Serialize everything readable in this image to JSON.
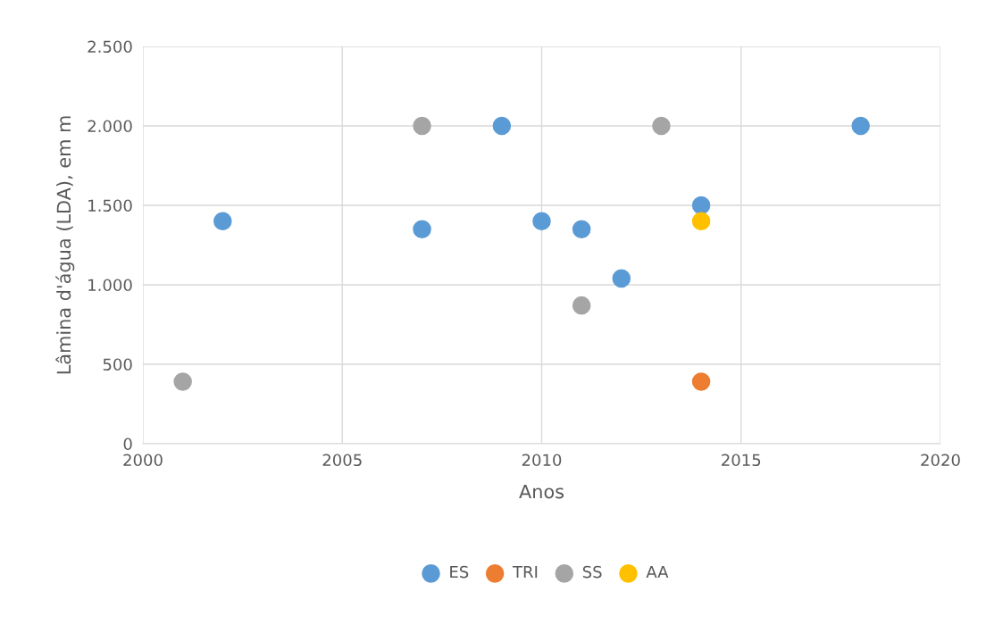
{
  "chart_data": {
    "type": "scatter",
    "xlabel": "Anos",
    "ylabel": "Lâmina d'água (LDA), em m",
    "series": [
      {
        "name": "ES",
        "color": "#5b9bd5",
        "x": [
          2002,
          2007,
          2009,
          2010,
          2011,
          2012,
          2014,
          2018
        ],
        "values": [
          1400,
          1350,
          2000,
          1400,
          1350,
          1040,
          1500,
          2000
        ]
      },
      {
        "name": "TRI",
        "color": "#ed7d31",
        "x": [
          2014
        ],
        "values": [
          390
        ]
      },
      {
        "name": "SS",
        "color": "#a5a5a5",
        "x": [
          2001,
          2007,
          2011,
          2013
        ],
        "values": [
          390,
          2000,
          870,
          2000
        ]
      },
      {
        "name": "AA",
        "color": "#ffc000",
        "x": [
          2014
        ],
        "values": [
          1400
        ]
      }
    ],
    "xlim": [
      2000,
      2020
    ],
    "xticks": [
      2000,
      2005,
      2010,
      2015,
      2020
    ],
    "ylim": [
      0,
      2500
    ],
    "yticks": [
      0,
      500,
      {
        "value": 1000,
        "label": "1.000"
      },
      {
        "value": 1500,
        "label": "1.500"
      },
      {
        "value": 2000,
        "label": "2.000"
      },
      {
        "value": 2500,
        "label": "2.500"
      }
    ],
    "grid": true,
    "legend": "bottom",
    "marker": "circle"
  }
}
